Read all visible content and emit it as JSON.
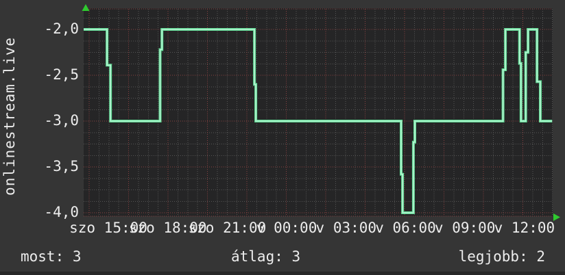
{
  "window": {
    "background": "#353535",
    "plot_background": "#252526",
    "bottom_strip_color": "#272727"
  },
  "stats_bar": {
    "most_label": "most: 3",
    "average_label": "átlag: 3",
    "best_label": "legjobb: 2"
  },
  "chart_data": {
    "type": "line",
    "title": "onlinestream.live",
    "x_tick_labels": [
      "szo 15:00",
      "szo 18:00",
      "szo 21:00",
      "v 00:00",
      "v 03:00",
      "v 06:00",
      "v 09:00",
      "v 12:00"
    ],
    "y_tick_labels": [
      "-2,0",
      "-2,5",
      "-3,0",
      "-3,5",
      "-4,0"
    ],
    "y_tick_values": [
      -2.0,
      -2.5,
      -3.0,
      -3.5,
      -4.0
    ],
    "ylim": [
      -4.04,
      -1.77
    ],
    "grid": "dotted",
    "legend_position": "none",
    "stats": {
      "most": 3,
      "atlag": 3,
      "legjobb": 2
    },
    "series": [
      {
        "name": "onlinestream.live",
        "step_points": [
          [
            0.0,
            -2.0
          ],
          [
            0.048,
            -2.0
          ],
          [
            0.0495,
            -2.39
          ],
          [
            0.053,
            -2.39
          ],
          [
            0.057,
            -3.0
          ],
          [
            0.16,
            -3.0
          ],
          [
            0.162,
            -2.22
          ],
          [
            0.164,
            -2.22
          ],
          [
            0.166,
            -2.0
          ],
          [
            0.36,
            -2.0
          ],
          [
            0.362,
            -2.6
          ],
          [
            0.364,
            -2.6
          ],
          [
            0.365,
            -3.0
          ],
          [
            0.672,
            -3.0
          ],
          [
            0.673,
            -3.58
          ],
          [
            0.675,
            -3.58
          ],
          [
            0.676,
            -4.0
          ],
          [
            0.698,
            -4.0
          ],
          [
            0.699,
            -3.23
          ],
          [
            0.701,
            -3.23
          ],
          [
            0.702,
            -3.0
          ],
          [
            0.888,
            -3.0
          ],
          [
            0.889,
            -2.44
          ],
          [
            0.891,
            -2.44
          ],
          [
            0.894,
            -2.0
          ],
          [
            0.923,
            -2.0
          ],
          [
            0.924,
            -2.37
          ],
          [
            0.926,
            -2.37
          ],
          [
            0.927,
            -3.0
          ],
          [
            0.936,
            -3.0
          ],
          [
            0.937,
            -2.25
          ],
          [
            0.939,
            -2.25
          ],
          [
            0.942,
            -2.0
          ],
          [
            0.959,
            -2.0
          ],
          [
            0.961,
            -2.57
          ],
          [
            0.963,
            -2.57
          ],
          [
            0.968,
            -3.0
          ],
          [
            0.993,
            -3.0
          ]
        ]
      }
    ],
    "colors": {
      "line": "#63db96",
      "line_core": "#b9f5d5",
      "grid_minor": "#565656",
      "grid_major": "#8a4242",
      "axis_arrow": "#2fc92f",
      "text": "#ededed"
    }
  }
}
